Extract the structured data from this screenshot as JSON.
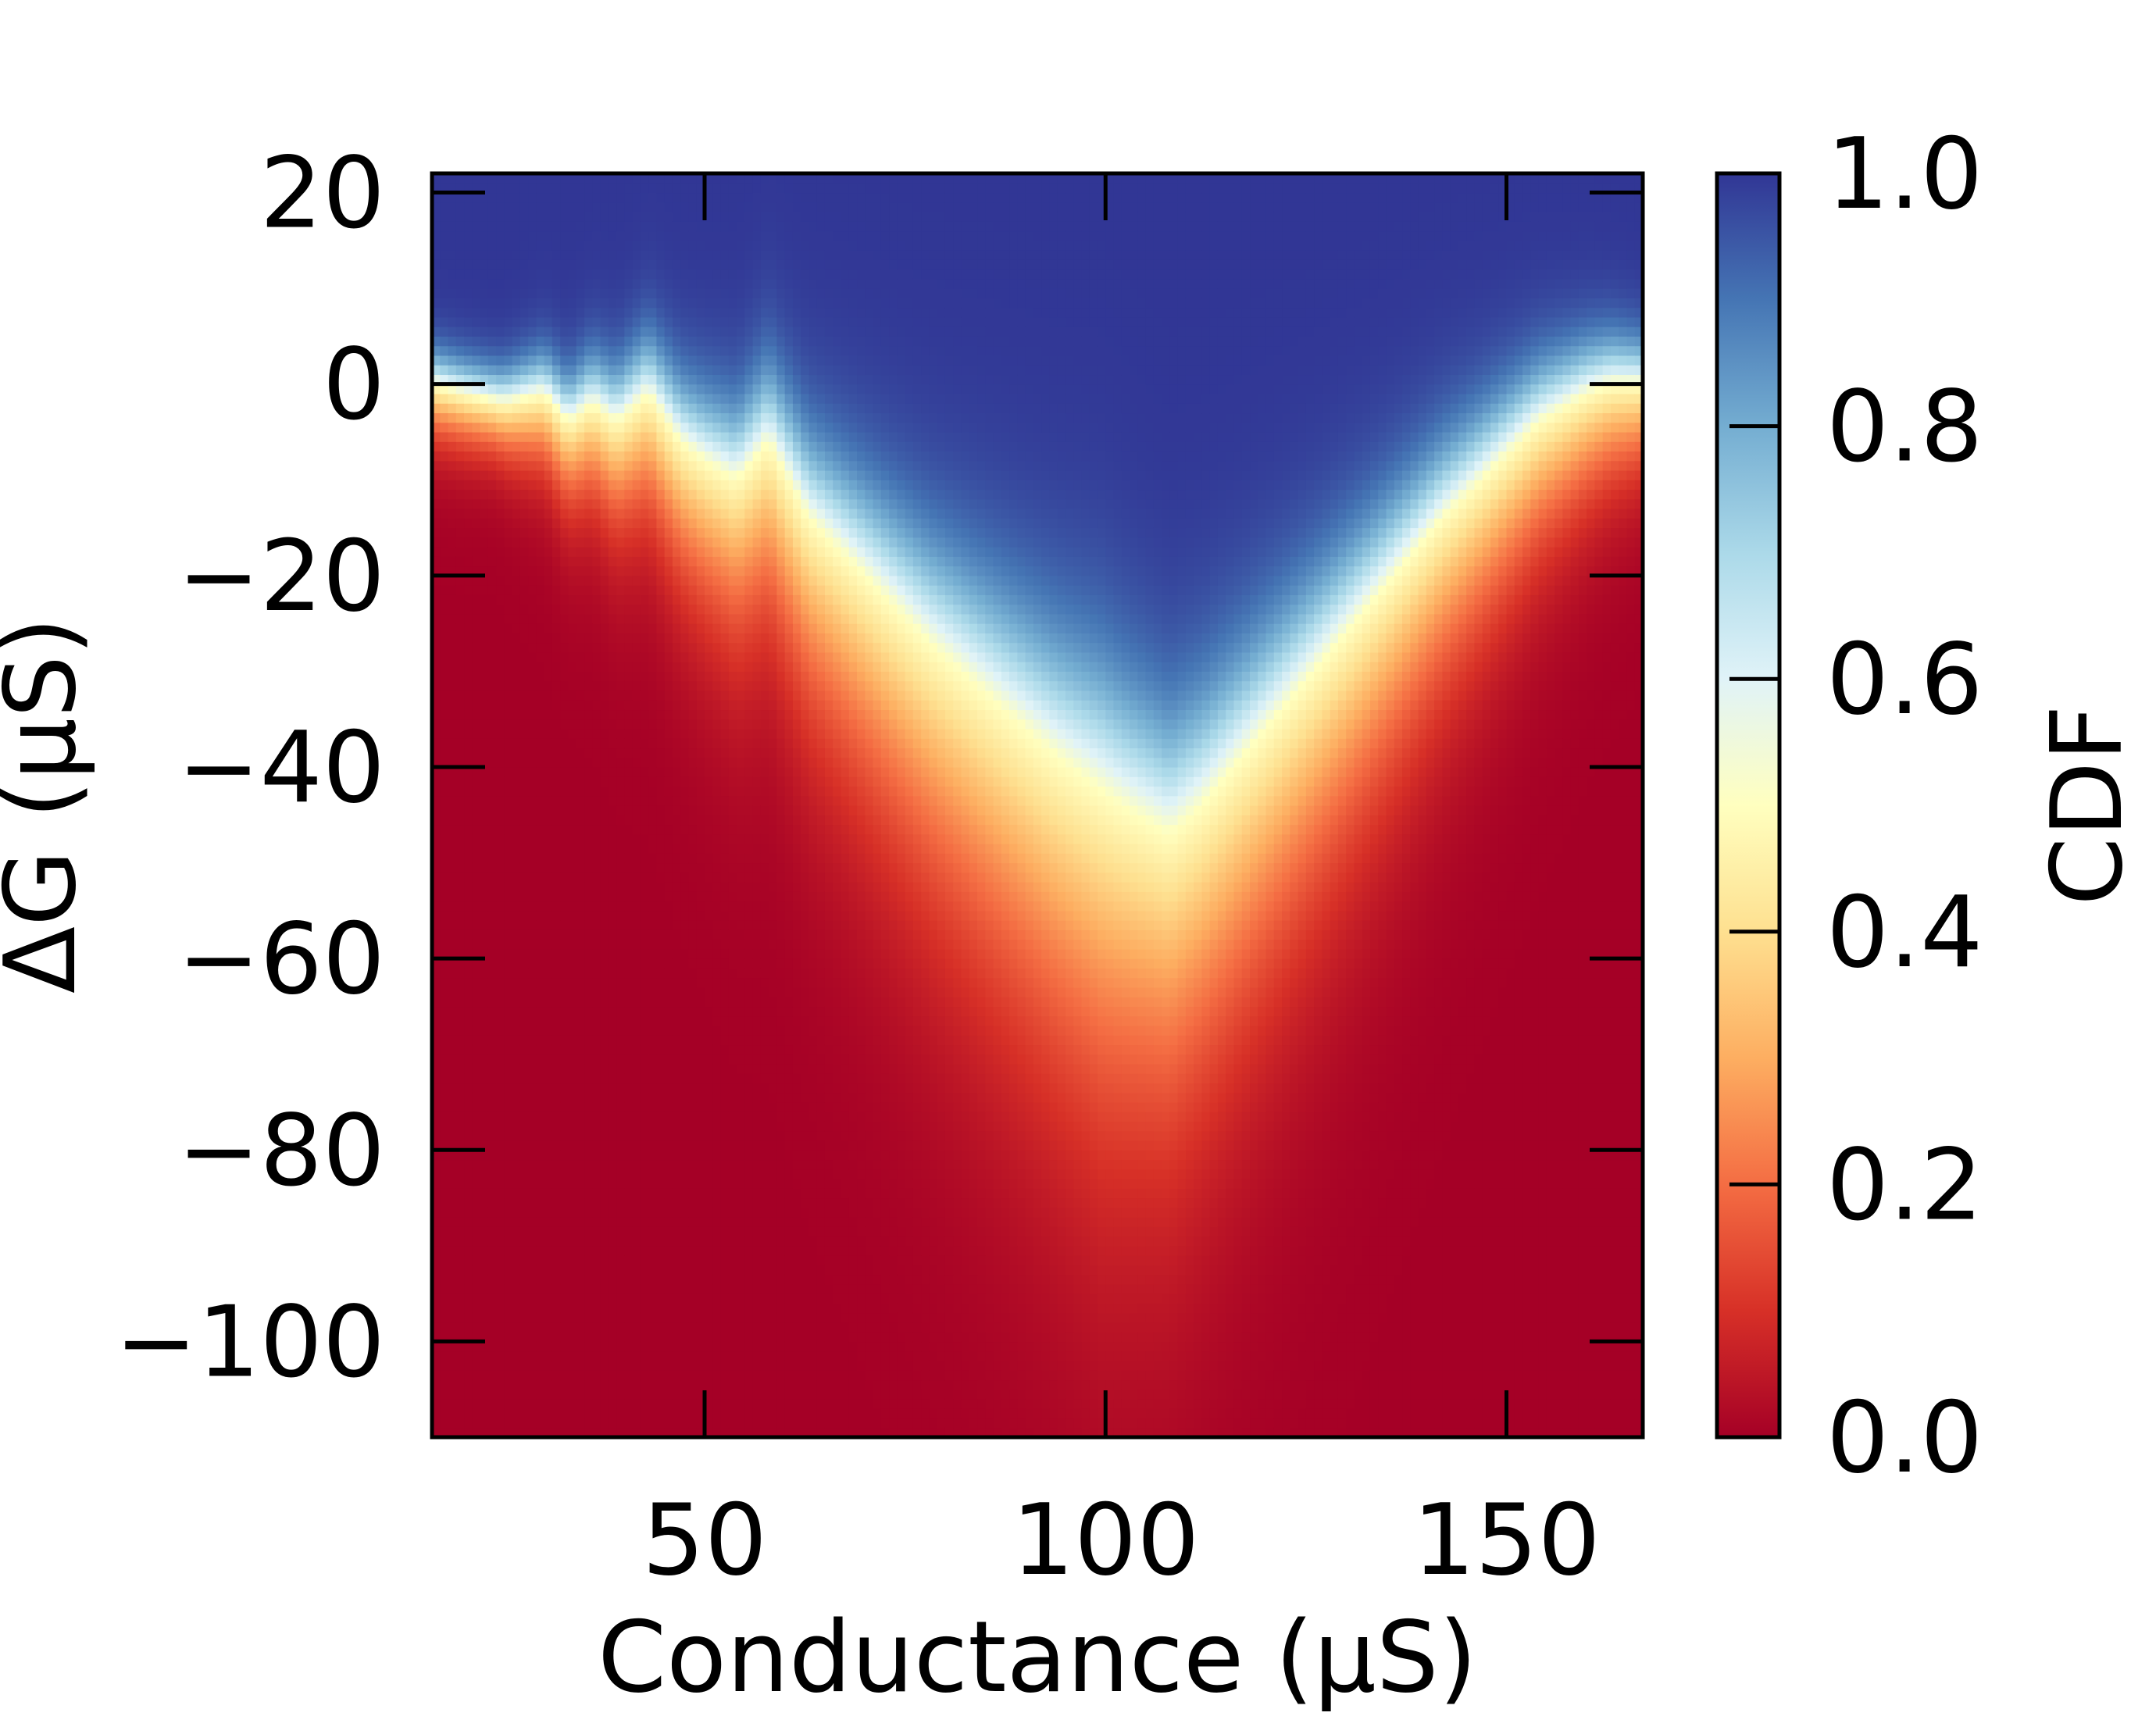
{
  "chart_data": {
    "type": "heatmap",
    "title": "",
    "xlabel": "Conductance (μS)",
    "ylabel": "ΔG (μS)",
    "colorbar_label": "CDF",
    "xlim": [
      16,
      167
    ],
    "ylim": [
      -110,
      22
    ],
    "clim": [
      0,
      1
    ],
    "x_ticks": [
      50,
      100,
      150
    ],
    "y_ticks": [
      20,
      0,
      -20,
      -40,
      -60,
      -80,
      -100
    ],
    "colorbar_ticks": [
      0.0,
      0.2,
      0.4,
      0.6,
      0.8,
      1.0
    ],
    "x_tick_labels": [
      "50",
      "100",
      "150"
    ],
    "y_tick_labels": [
      "20",
      "0",
      "−20",
      "−40",
      "−60",
      "−80",
      "−100"
    ],
    "colorbar_tick_labels": [
      "0.0",
      "0.2",
      "0.4",
      "0.6",
      "0.8",
      "1.0"
    ],
    "colormap": "RdYlBu",
    "colormap_stops": [
      "#a50026",
      "#d73027",
      "#f46d43",
      "#fdae61",
      "#fee090",
      "#ffffbf",
      "#e0f3f8",
      "#abd9e9",
      "#74add1",
      "#4575b4",
      "#313695"
    ],
    "median_boundary": {
      "x": [
        16,
        20,
        25,
        30,
        33,
        36,
        39,
        43,
        47,
        50,
        54,
        58,
        63,
        70,
        78,
        86,
        94,
        102,
        108,
        112,
        118,
        124,
        130,
        136,
        142,
        148,
        154,
        160,
        163,
        167
      ],
      "dg": [
        0,
        -1,
        -2,
        -1,
        -4,
        -2,
        -4,
        -1,
        -6,
        -8,
        -10,
        -6,
        -14,
        -20,
        -27,
        -33,
        -39,
        -44,
        -47,
        -44,
        -38,
        -32,
        -26,
        -20,
        -14,
        -9,
        -4,
        -1,
        0,
        0
      ]
    }
  }
}
